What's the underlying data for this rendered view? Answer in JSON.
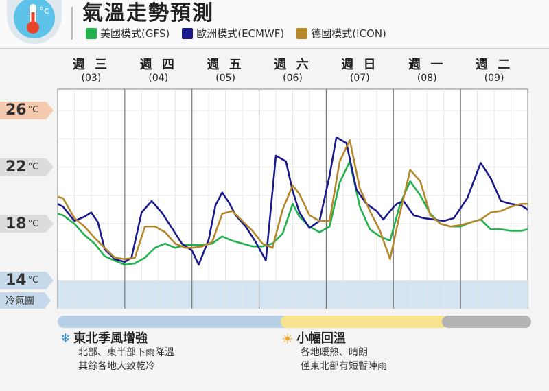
{
  "title": "氣溫走勢預測",
  "legend": [
    {
      "name": "美國模式(GFS)",
      "color": "#22b14c"
    },
    {
      "name": "歐洲模式(ECMWF)",
      "color": "#1a1a8c"
    },
    {
      "name": "德國模式(ICON)",
      "color": "#b5872b"
    }
  ],
  "days": [
    {
      "label": "週 三",
      "date": "(03)"
    },
    {
      "label": "週 四",
      "date": "(04)"
    },
    {
      "label": "週 五",
      "date": "(05)"
    },
    {
      "label": "週 六",
      "date": "(06)"
    },
    {
      "label": "週 日",
      "date": "(07)"
    },
    {
      "label": "週 一",
      "date": "(08)"
    },
    {
      "label": "週 二",
      "date": "(09)"
    }
  ],
  "y_ticks": [
    {
      "value": "26",
      "unit": "°C",
      "color": "#f5c9ae"
    },
    {
      "value": "22",
      "unit": "°C",
      "color": "#dcdcdc"
    },
    {
      "value": "18",
      "unit": "°C",
      "color": "#dcdcdc"
    },
    {
      "value": "14",
      "unit": "°C",
      "color": "#c6d9ea"
    }
  ],
  "cold_label": "冷氣團",
  "notes": [
    {
      "icon": "snowflake-icon",
      "glyph": "❄",
      "title": "東北季風增強",
      "lines": [
        "北部、東半部下雨降溫",
        "其餘各地大致乾冷"
      ]
    },
    {
      "icon": "sun-icon",
      "glyph": "☀",
      "title": "小幅回溫",
      "lines": [
        "各地暖熱、晴朗",
        "僅東北部有短暫陣雨"
      ]
    }
  ],
  "chart_data": {
    "type": "line",
    "ylim": [
      12,
      27.5
    ],
    "xlim": [
      0,
      7
    ],
    "grid": true,
    "legend_position": "top",
    "cold_air_threshold": 14,
    "series": [
      {
        "name": "美國模式(GFS)",
        "color": "#22b14c",
        "x": [
          0,
          0.08,
          0.25,
          0.4,
          0.55,
          0.7,
          0.85,
          1.0,
          1.15,
          1.3,
          1.45,
          1.6,
          1.75,
          1.9,
          2.0,
          2.15,
          2.3,
          2.45,
          2.6,
          2.75,
          2.9,
          3.05,
          3.2,
          3.35,
          3.5,
          3.6,
          3.75,
          3.9,
          4.05,
          4.2,
          4.35,
          4.5,
          4.65,
          4.8,
          4.95,
          5.1,
          5.25,
          5.4,
          5.55,
          5.7,
          5.85,
          6.0,
          6.15,
          6.3,
          6.45,
          6.6,
          6.75,
          6.9,
          7.0
        ],
        "y": [
          18.7,
          18.6,
          18.0,
          17.2,
          16.6,
          15.7,
          15.4,
          15.1,
          15.2,
          15.6,
          16.3,
          16.6,
          16.3,
          16.5,
          16.5,
          16.5,
          16.6,
          17.1,
          16.8,
          16.6,
          16.4,
          16.4,
          16.6,
          17.3,
          19.4,
          18.5,
          17.8,
          17.4,
          17.8,
          20.9,
          22.4,
          19.2,
          17.6,
          17.1,
          16.8,
          19.4,
          21.0,
          20.0,
          18.7,
          18.0,
          17.8,
          17.8,
          18.1,
          18.3,
          17.6,
          17.6,
          17.5,
          17.5,
          17.6
        ]
      },
      {
        "name": "歐洲模式(ECMWF)",
        "color": "#1a1a8c",
        "x": [
          0,
          0.08,
          0.25,
          0.4,
          0.5,
          0.6,
          0.7,
          0.85,
          1.0,
          1.1,
          1.25,
          1.4,
          1.55,
          1.7,
          1.85,
          2.0,
          2.1,
          2.25,
          2.35,
          2.45,
          2.55,
          2.65,
          2.8,
          2.95,
          3.1,
          3.25,
          3.4,
          3.5,
          3.6,
          3.75,
          3.9,
          4.05,
          4.15,
          4.3,
          4.45,
          4.6,
          4.75,
          4.85,
          4.95,
          5.05,
          5.15,
          5.3,
          5.45,
          5.6,
          5.75,
          5.9,
          6.1,
          6.3,
          6.45,
          6.6,
          6.75,
          6.9,
          7.0
        ],
        "y": [
          19.4,
          19.2,
          18.2,
          18.5,
          18.8,
          18.1,
          16.2,
          15.5,
          15.3,
          15.6,
          18.8,
          19.6,
          18.8,
          17.7,
          16.6,
          16.1,
          15.1,
          16.9,
          19.3,
          20.2,
          19.5,
          18.6,
          17.8,
          16.7,
          15.4,
          22.8,
          22.4,
          20.3,
          18.8,
          17.7,
          18.2,
          21.4,
          24.1,
          23.7,
          20.4,
          19.4,
          18.9,
          18.3,
          18.9,
          19.4,
          19.6,
          18.6,
          18.4,
          18.3,
          18.2,
          18.4,
          19.8,
          22.3,
          21.2,
          19.6,
          19.4,
          19.3,
          19.0
        ]
      },
      {
        "name": "德國模式(ICON)",
        "color": "#b5872b",
        "x": [
          0,
          0.08,
          0.25,
          0.4,
          0.55,
          0.7,
          0.85,
          1.0,
          1.15,
          1.3,
          1.45,
          1.6,
          1.75,
          1.9,
          2.0,
          2.15,
          2.3,
          2.45,
          2.6,
          2.75,
          2.9,
          3.05,
          3.2,
          3.35,
          3.5,
          3.6,
          3.75,
          3.9,
          4.05,
          4.2,
          4.35,
          4.5,
          4.65,
          4.8,
          4.95,
          5.1,
          5.25,
          5.4,
          5.55,
          5.7,
          5.85,
          6.0,
          6.15,
          6.3,
          6.45,
          6.6,
          6.75,
          6.9,
          7.0
        ],
        "y": [
          19.9,
          19.8,
          18.4,
          17.8,
          17.0,
          16.3,
          15.6,
          15.5,
          15.6,
          17.8,
          17.8,
          17.4,
          16.6,
          16.3,
          16.3,
          16.4,
          16.7,
          18.7,
          18.9,
          18.2,
          17.5,
          16.6,
          16.3,
          19.0,
          20.7,
          20.1,
          18.6,
          18.2,
          18.2,
          22.4,
          23.9,
          20.5,
          18.9,
          17.5,
          15.5,
          18.8,
          21.8,
          21.0,
          18.6,
          18.0,
          17.8,
          17.9,
          18.1,
          18.3,
          18.8,
          18.9,
          19.2,
          19.4,
          19.4
        ]
      }
    ]
  }
}
